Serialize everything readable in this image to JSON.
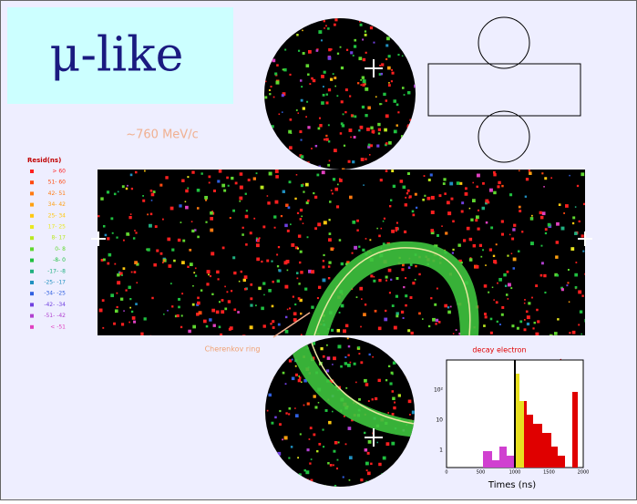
{
  "title": "μ-like",
  "annotations": {
    "momentum": "~760 MeV/c",
    "cherenkov": "Cherenkov ring",
    "decay": "decay electron"
  },
  "legend": {
    "title": "Resid(ns)",
    "items": [
      {
        "label": "> 60",
        "color": "#ff2020"
      },
      {
        "label": "51- 60",
        "color": "#ff4a10"
      },
      {
        "label": "42- 51",
        "color": "#ff7a10"
      },
      {
        "label": "34- 42",
        "color": "#ffa010"
      },
      {
        "label": "25- 34",
        "color": "#ffc810"
      },
      {
        "label": "17- 25",
        "color": "#e8e820"
      },
      {
        "label": "8- 17",
        "color": "#b8e820"
      },
      {
        "label": "0- 8",
        "color": "#60d830"
      },
      {
        "label": "-8- 0",
        "color": "#20c040"
      },
      {
        "label": "-17- -8",
        "color": "#20b080"
      },
      {
        "label": "-25- -17",
        "color": "#2090c0"
      },
      {
        "label": "-34- -25",
        "color": "#3060e0"
      },
      {
        "label": "-42- -34",
        "color": "#7040e0"
      },
      {
        "label": "-51- -42",
        "color": "#b040d0"
      },
      {
        "label": "< -51",
        "color": "#e040c0"
      }
    ]
  },
  "histogram": {
    "x_label": "Times (ns)",
    "xticks": [
      "0",
      "500",
      "1000",
      "1500",
      "2000"
    ],
    "yticks": [
      "10²",
      "10",
      "1"
    ]
  }
}
